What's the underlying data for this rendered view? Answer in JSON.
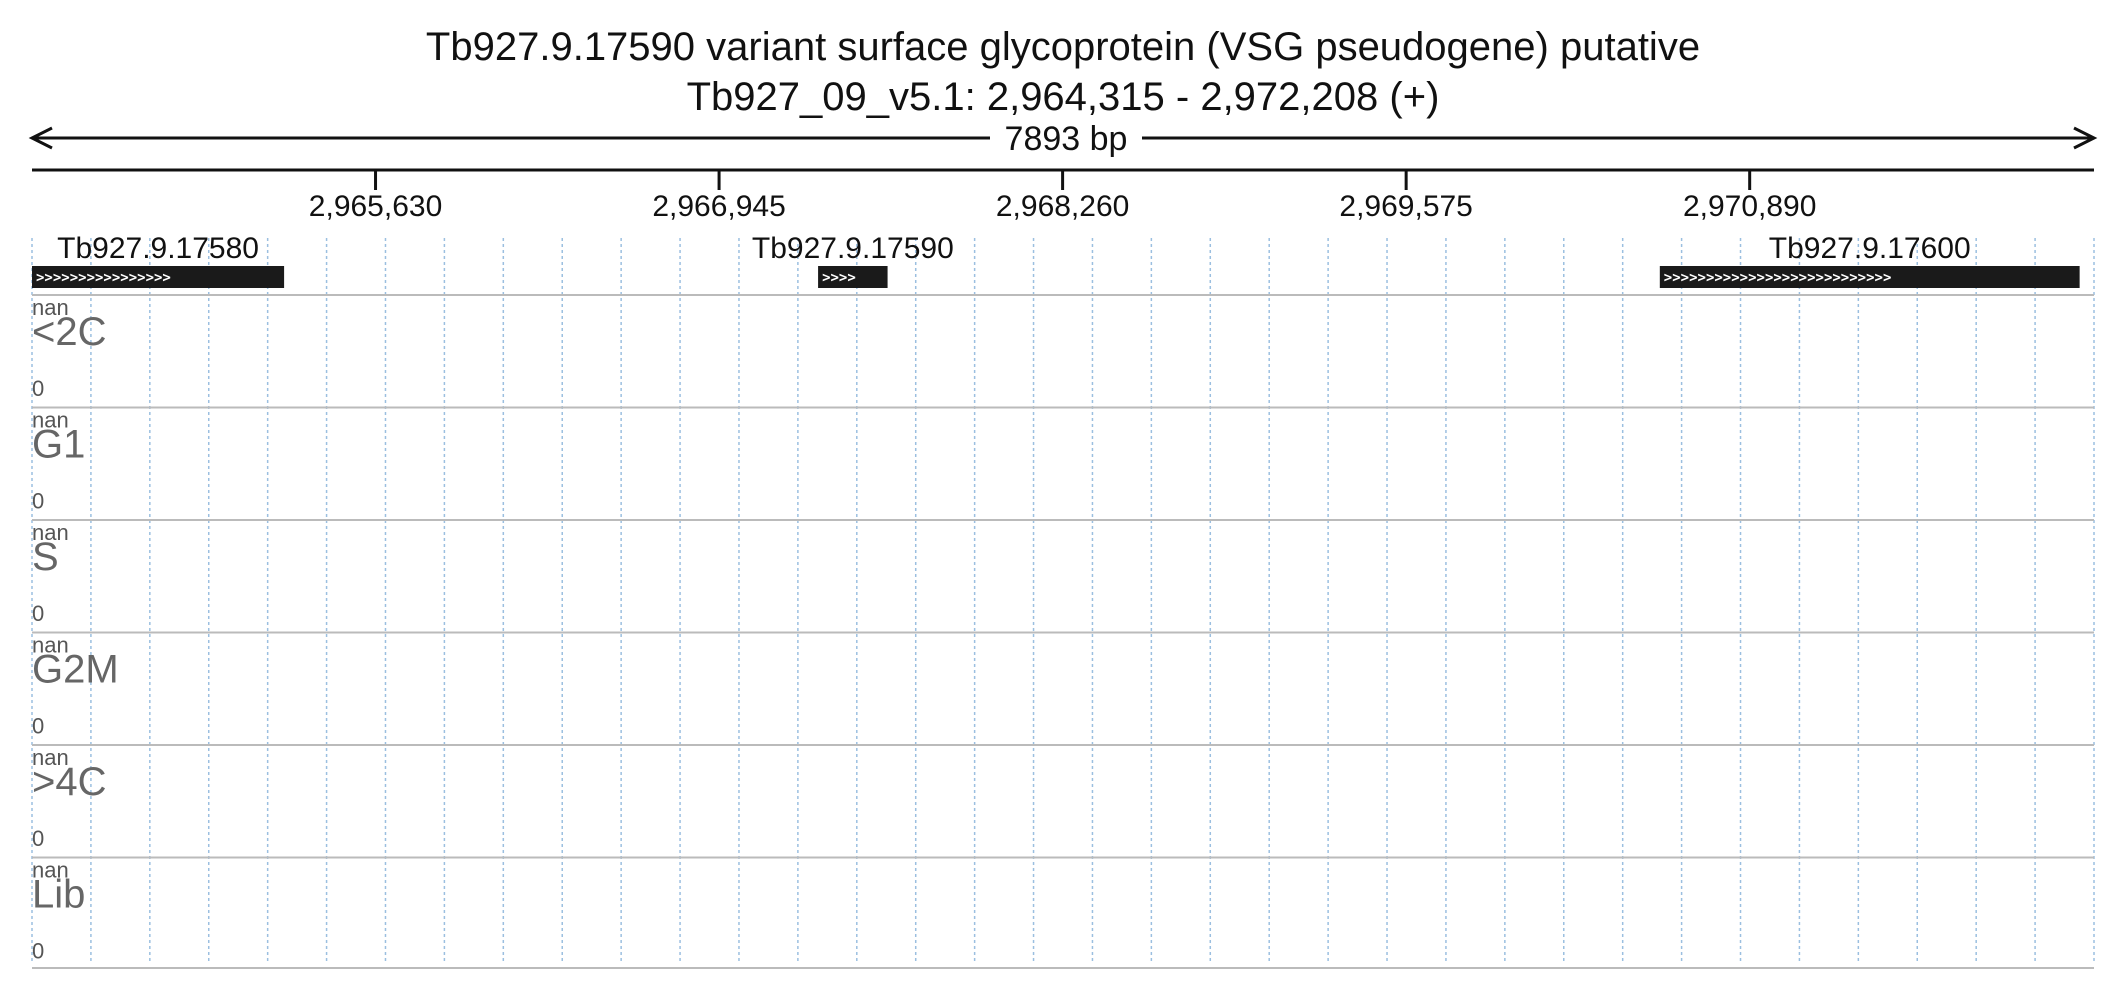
{
  "title": {
    "line1": "Tb927.9.17590  variant surface glycoprotein (VSG  pseudogene)  putative",
    "line2": "Tb927_09_v5.1: 2,964,315 - 2,972,208 (+)"
  },
  "span": {
    "label": "7893 bp"
  },
  "region": {
    "start": 2964315,
    "end": 2972208
  },
  "ticks": [
    {
      "pos": 2965630,
      "label": "2,965,630"
    },
    {
      "pos": 2966945,
      "label": "2,966,945"
    },
    {
      "pos": 2968260,
      "label": "2,968,260"
    },
    {
      "pos": 2969575,
      "label": "2,969,575"
    },
    {
      "pos": 2970890,
      "label": "2,970,890"
    }
  ],
  "genes": [
    {
      "name": "Tb927.9.17580",
      "start": 2964315,
      "end": 2965280,
      "strand": "+"
    },
    {
      "name": "Tb927.9.17590",
      "start": 2967324,
      "end": 2967590,
      "strand": "+"
    },
    {
      "name": "Tb927.9.17600",
      "start": 2970546,
      "end": 2972153,
      "strand": "+"
    }
  ],
  "tracks": [
    {
      "name": "<2C",
      "max": "nan",
      "min": "0"
    },
    {
      "name": "G1",
      "max": "nan",
      "min": "0"
    },
    {
      "name": "S",
      "max": "nan",
      "min": "0"
    },
    {
      "name": "G2M",
      "max": "nan",
      "min": "0"
    },
    {
      "name": ">4C",
      "max": "nan",
      "min": "0"
    },
    {
      "name": "Lib",
      "max": "nan",
      "min": "0"
    }
  ],
  "colors": {
    "gene": "#1a1a1a",
    "grid": "#9bbfe0",
    "track_border": "#bbbbbb",
    "axis": "#111111"
  }
}
